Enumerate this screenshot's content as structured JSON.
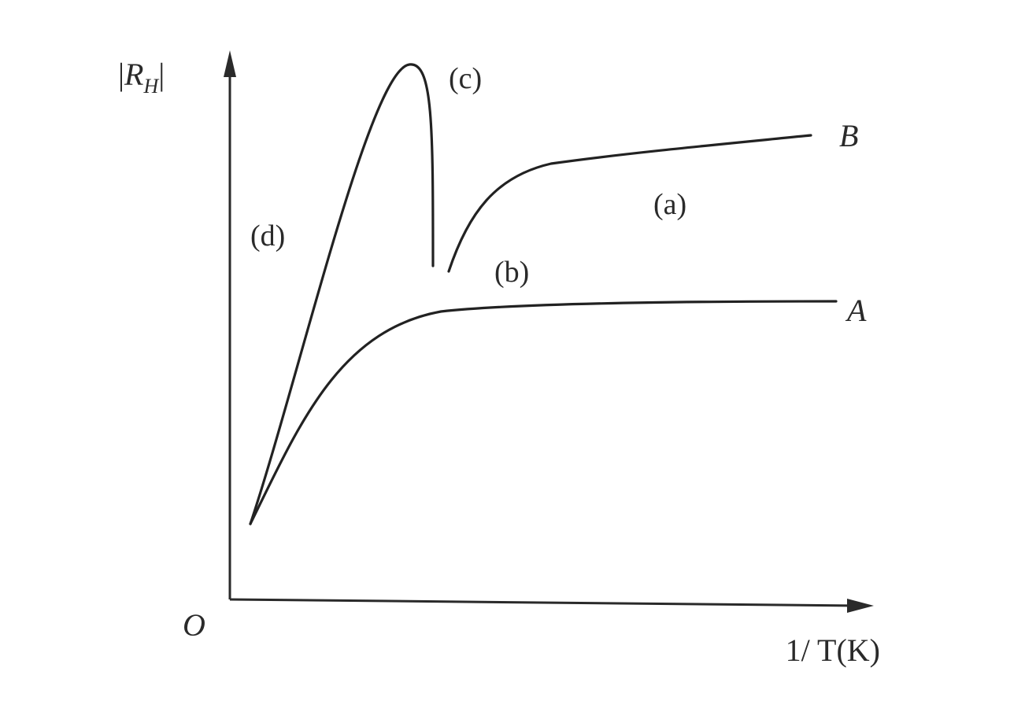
{
  "chart_data": {
    "type": "line",
    "title": "",
    "xlabel": "1/ T(K)",
    "ylabel": "|R_H|",
    "ylabel_parts": {
      "open": "|",
      "symbol": "R",
      "subscript": "H",
      "close": "|"
    },
    "origin_label": "O",
    "axis_ticks": "none",
    "grid": false,
    "series": [
      {
        "name": "A",
        "x": [
          0.0,
          0.1,
          0.2,
          0.3,
          0.5,
          0.7,
          1.0
        ],
        "y": [
          0.12,
          0.38,
          0.53,
          0.56,
          0.575,
          0.58,
          0.58
        ]
      },
      {
        "name": "B",
        "x": [
          0.0,
          0.1,
          0.2,
          0.25,
          0.28,
          0.3,
          0.4,
          0.6,
          1.0
        ],
        "y": [
          0.12,
          0.62,
          0.9,
          0.95,
          0.58,
          0.6,
          0.78,
          0.84,
          0.89
        ]
      }
    ],
    "annotations": [
      "(a)",
      "(b)",
      "(c)",
      "(d)"
    ]
  }
}
